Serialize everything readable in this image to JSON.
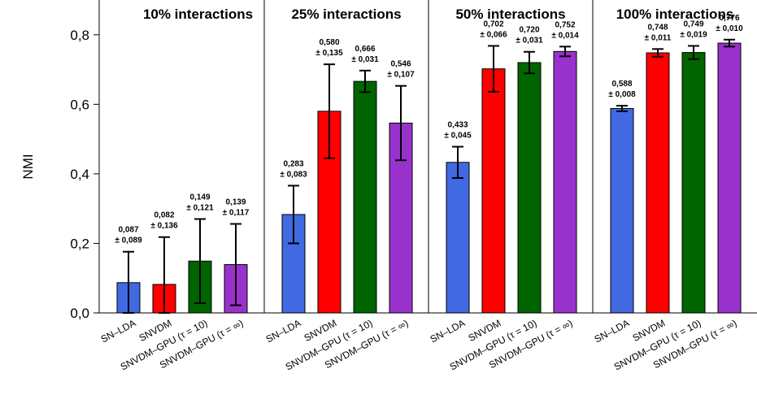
{
  "chart_data": {
    "type": "bar",
    "ylabel": "NMI",
    "ylim": [
      0,
      0.9
    ],
    "yticks": [
      "0,0",
      "0,2",
      "0,4",
      "0,6",
      "0,8"
    ],
    "categories": [
      "SN–LDA",
      "SNVDM",
      "SNVDM–GPU (τ = 10)",
      "SNVDM–GPU (τ = ∞)"
    ],
    "colors": [
      "#4169e1",
      "#ff0000",
      "#006400",
      "#9932cc"
    ],
    "panels": [
      {
        "title": "10% interactions",
        "values": [
          0.087,
          0.082,
          0.149,
          0.139
        ],
        "errors": [
          0.089,
          0.136,
          0.121,
          0.117
        ],
        "value_labels": [
          "0,087",
          "0,082",
          "0,149",
          "0,139"
        ],
        "error_labels": [
          "± 0,089",
          "± 0,136",
          "± 0,121",
          "± 0,117"
        ]
      },
      {
        "title": "25% interactions",
        "values": [
          0.283,
          0.58,
          0.666,
          0.546
        ],
        "errors": [
          0.083,
          0.135,
          0.031,
          0.107
        ],
        "value_labels": [
          "0,283",
          "0,580",
          "0,666",
          "0,546"
        ],
        "error_labels": [
          "± 0,083",
          "± 0,135",
          "± 0,031",
          "± 0,107"
        ]
      },
      {
        "title": "50% interactions",
        "values": [
          0.433,
          0.702,
          0.72,
          0.752
        ],
        "errors": [
          0.045,
          0.066,
          0.031,
          0.014
        ],
        "value_labels": [
          "0,433",
          "0,702",
          "0,720",
          "0,752"
        ],
        "error_labels": [
          "± 0,045",
          "± 0,066",
          "± 0,031",
          "± 0,014"
        ]
      },
      {
        "title": "100% interactions",
        "values": [
          0.588,
          0.748,
          0.749,
          0.776
        ],
        "errors": [
          0.008,
          0.011,
          0.019,
          0.01
        ],
        "value_labels": [
          "0,588",
          "0,748",
          "0,749",
          "0,776"
        ],
        "error_labels": [
          "± 0,008",
          "± 0,011",
          "± 0,019",
          "± 0,010"
        ]
      }
    ]
  }
}
